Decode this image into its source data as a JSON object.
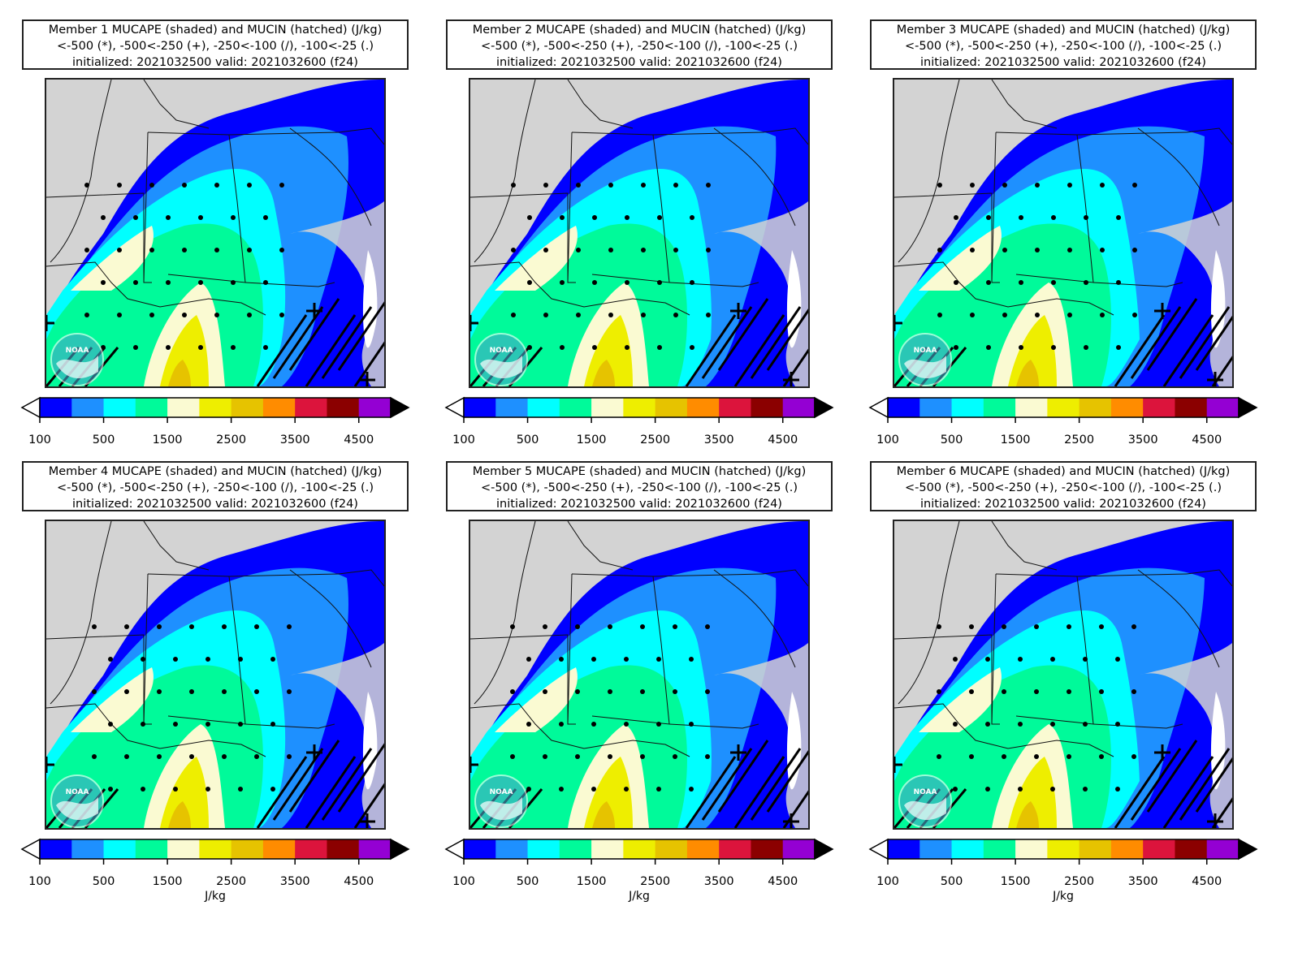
{
  "panels": [
    {
      "title": "Member 1 MUCAPE (shaded) and MUCIN (hatched) (J/kg)",
      "legend": "<-500 (*), -500<-250 (+), -250<-100 (/), -100<-25 (.)",
      "times": "initialized: 2021032500 valid: 2021032600 (f24)",
      "units": ""
    },
    {
      "title": "Member 2 MUCAPE (shaded) and MUCIN (hatched) (J/kg)",
      "legend": "<-500 (*), -500<-250 (+), -250<-100 (/), -100<-25 (.)",
      "times": "initialized: 2021032500 valid: 2021032600 (f24)",
      "units": ""
    },
    {
      "title": "Member 3 MUCAPE (shaded) and MUCIN (hatched) (J/kg)",
      "legend": "<-500 (*), -500<-250 (+), -250<-100 (/), -100<-25 (.)",
      "times": "initialized: 2021032500 valid: 2021032600 (f24)",
      "units": ""
    },
    {
      "title": "Member 4 MUCAPE (shaded) and MUCIN (hatched) (J/kg)",
      "legend": "<-500 (*), -500<-250 (+), -250<-100 (/), -100<-25 (.)",
      "times": "initialized: 2021032500 valid: 2021032600 (f24)",
      "units": "J/kg"
    },
    {
      "title": "Member 5 MUCAPE (shaded) and MUCIN (hatched) (J/kg)",
      "legend": "<-500 (*), -500<-250 (+), -250<-100 (/), -100<-25 (.)",
      "times": "initialized: 2021032500 valid: 2021032600 (f24)",
      "units": "J/kg"
    },
    {
      "title": "Member 6 MUCAPE (shaded) and MUCIN (hatched) (J/kg)",
      "legend": "<-500 (*), -500<-250 (+), -250<-100 (/), -100<-25 (.)",
      "times": "initialized: 2021032500 valid: 2021032600 (f24)",
      "units": "J/kg"
    }
  ],
  "colorbar": {
    "tick_labels": [
      "100",
      "500",
      "1500",
      "2500",
      "3500",
      "4500"
    ],
    "bins": [
      {
        "upper": 250,
        "color": "#0000ff"
      },
      {
        "upper": 500,
        "color": "#1e90ff"
      },
      {
        "upper": 1000,
        "color": "#00ffff"
      },
      {
        "upper": 1500,
        "color": "#00fa9a"
      },
      {
        "upper": 2000,
        "color": "#fafad2"
      },
      {
        "upper": 2500,
        "color": "#eeee00"
      },
      {
        "upper": 3000,
        "color": "#e6c300"
      },
      {
        "upper": 3500,
        "color": "#ff8c00"
      },
      {
        "upper": 4000,
        "color": "#dc143c"
      },
      {
        "upper": 4500,
        "color": "#8b0000"
      },
      {
        "upper": 5000,
        "color": "#9400d3"
      }
    ],
    "under_color": "#ffffff",
    "over_color": "#000000"
  },
  "colors": {
    "land": "#d3d3d3",
    "border": "#111111"
  },
  "logo": {
    "text": "NOAA"
  }
}
